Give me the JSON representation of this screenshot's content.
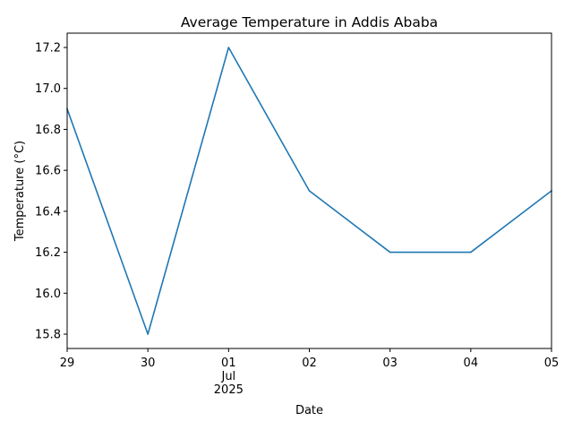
{
  "chart_data": {
    "type": "line",
    "title": "Average Temperature in Addis Ababa",
    "xlabel": "Date",
    "ylabel": "Temperature (°C)",
    "x": [
      "2025-06-29",
      "2025-06-30",
      "2025-07-01",
      "2025-07-02",
      "2025-07-03",
      "2025-07-04",
      "2025-07-05"
    ],
    "x_tick_labels": [
      "29",
      "30",
      "01",
      "02",
      "03",
      "04",
      "05"
    ],
    "x_tick_sublabel": {
      "tick": "01",
      "lines": [
        "Jul",
        "2025"
      ]
    },
    "series": [
      {
        "values": [
          16.9,
          15.8,
          17.2,
          16.5,
          16.2,
          16.2,
          16.5
        ],
        "color": "#1f77b4"
      }
    ],
    "ylim": [
      15.73,
      17.27
    ],
    "y_ticks": [
      15.8,
      16.0,
      16.2,
      16.4,
      16.6,
      16.8,
      17.0,
      17.2
    ],
    "y_tick_labels": [
      "15.8",
      "16.0",
      "16.2",
      "16.4",
      "16.6",
      "16.8",
      "17.0",
      "17.2"
    ],
    "grid": false,
    "legend": "none"
  }
}
